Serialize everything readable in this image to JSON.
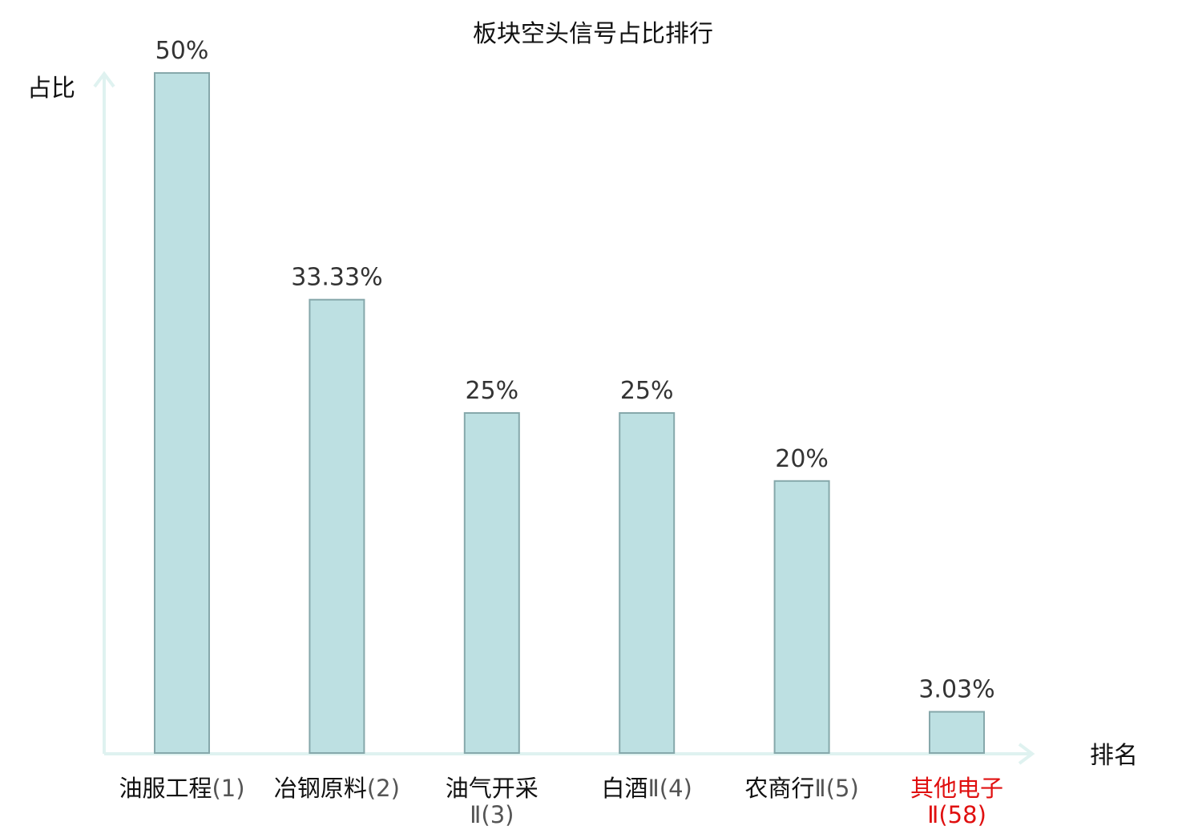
{
  "chart_data": {
    "type": "bar",
    "title": "板块空头信号占比排行",
    "xlabel": "排名",
    "ylabel": "占比",
    "categories": [
      {
        "name": "油服工程",
        "rank": "(1)",
        "highlight": false
      },
      {
        "name": "冶钢原料",
        "rank": "(2)",
        "highlight": false
      },
      {
        "name": "油气开采",
        "rank": "Ⅱ(3)",
        "highlight": false,
        "wrap": true
      },
      {
        "name": "白酒",
        "rank": "Ⅱ(4)",
        "highlight": false
      },
      {
        "name": "农商行",
        "rank": "Ⅱ(5)",
        "highlight": false
      },
      {
        "name": "其他电子",
        "rank": "Ⅱ(58)",
        "highlight": true,
        "wrap": true
      }
    ],
    "values": [
      50,
      33.33,
      25,
      25,
      20,
      3.03
    ],
    "value_labels": [
      "50%",
      "33.33%",
      "25%",
      "25%",
      "20%",
      "3.03%"
    ],
    "ylim": [
      0,
      50
    ],
    "grid": false,
    "colors": {
      "bar_fill": "#bde0e2",
      "bar_stroke": "#86a8ab",
      "axis": "#dff2f0",
      "highlight_text": "#e01010",
      "value_text": "#333333",
      "text": "#111111"
    }
  }
}
